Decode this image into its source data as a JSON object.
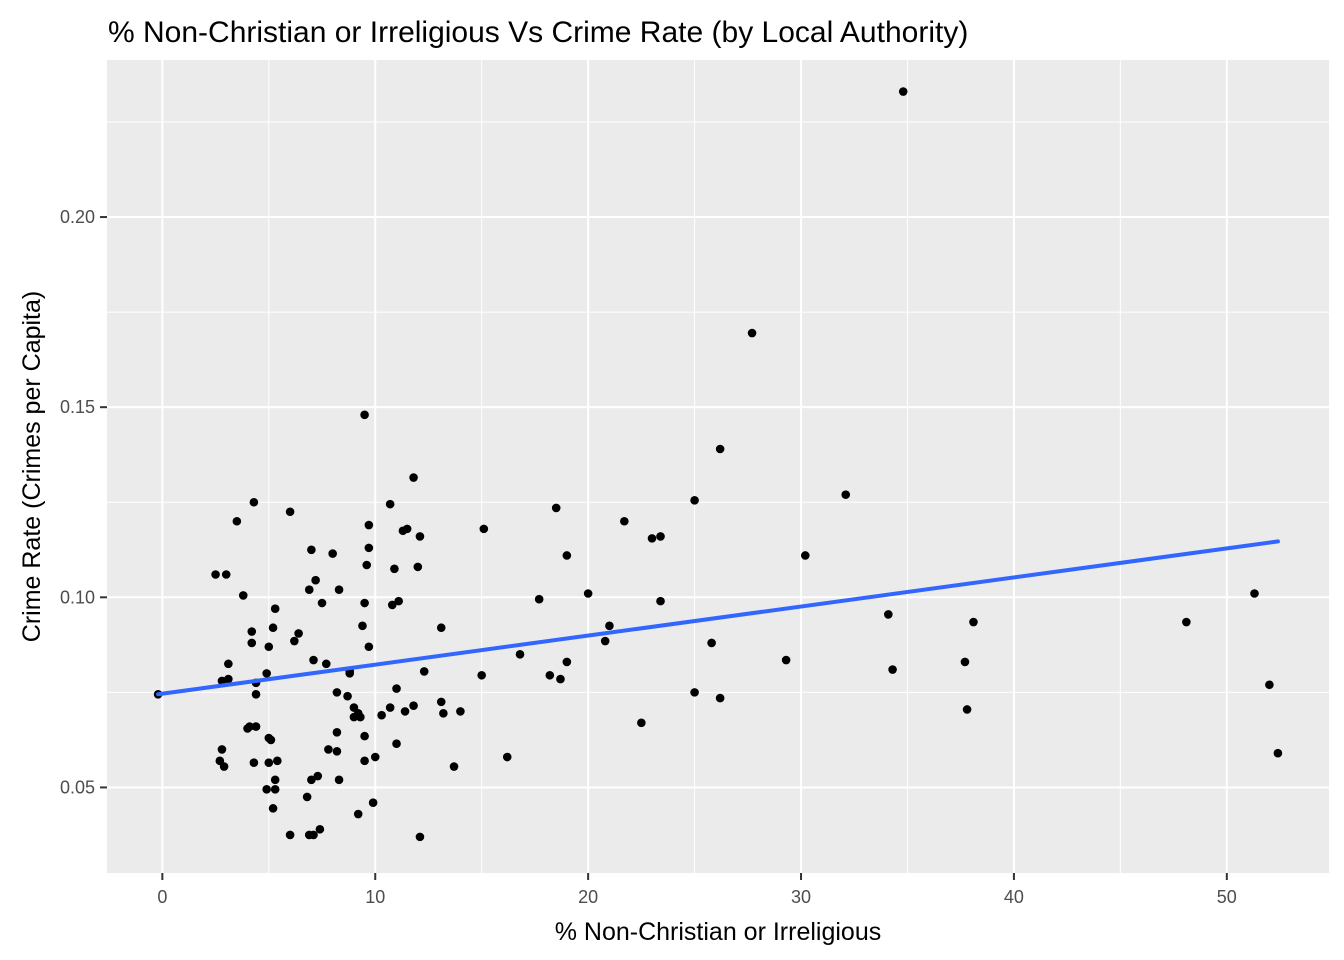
{
  "chart_data": {
    "type": "scatter",
    "title": "% Non-Christian or Irreligious Vs Crime Rate (by Local Authority)",
    "xlabel": "% Non-Christian or Irreligious",
    "ylabel": "Crime Rate (Crimes per Capita)",
    "xlim": [
      -2.6,
      54.8
    ],
    "ylim": [
      0.0275,
      0.2413
    ],
    "x_ticks": [
      0,
      10,
      20,
      30,
      40,
      50
    ],
    "x_tick_labels": [
      "0",
      "10",
      "20",
      "30",
      "40",
      "50"
    ],
    "y_ticks": [
      0.05,
      0.1,
      0.15,
      0.2
    ],
    "y_tick_labels": [
      "0.05",
      "0.10",
      "0.15",
      "0.20"
    ],
    "grid": true,
    "background_color": "#ebebeb",
    "point_color": "#000000",
    "trend_color": "#3366ff",
    "trend_line": {
      "method": "linear",
      "x": [
        -0.2,
        52.4
      ],
      "y": [
        0.0745,
        0.1147
      ]
    },
    "points": [
      [
        -0.2,
        0.0745
      ],
      [
        2.5,
        0.106
      ],
      [
        3.0,
        0.106
      ],
      [
        3.5,
        0.12
      ],
      [
        3.8,
        0.1005
      ],
      [
        4.3,
        0.125
      ],
      [
        2.8,
        0.06
      ],
      [
        2.7,
        0.057
      ],
      [
        2.9,
        0.0555
      ],
      [
        2.8,
        0.078
      ],
      [
        3.1,
        0.0785
      ],
      [
        3.1,
        0.0825
      ],
      [
        4.0,
        0.0655
      ],
      [
        4.1,
        0.066
      ],
      [
        4.2,
        0.088
      ],
      [
        4.2,
        0.091
      ],
      [
        4.4,
        0.0775
      ],
      [
        4.4,
        0.0745
      ],
      [
        4.4,
        0.066
      ],
      [
        4.3,
        0.0565
      ],
      [
        4.9,
        0.08
      ],
      [
        5.0,
        0.087
      ],
      [
        5.0,
        0.063
      ],
      [
        5.1,
        0.0625
      ],
      [
        5.0,
        0.0565
      ],
      [
        4.9,
        0.0495
      ],
      [
        5.3,
        0.0495
      ],
      [
        5.2,
        0.092
      ],
      [
        5.3,
        0.097
      ],
      [
        5.3,
        0.052
      ],
      [
        5.2,
        0.0445
      ],
      [
        5.4,
        0.057
      ],
      [
        6.0,
        0.1225
      ],
      [
        6.0,
        0.0375
      ],
      [
        6.2,
        0.0885
      ],
      [
        6.4,
        0.0905
      ],
      [
        6.9,
        0.102
      ],
      [
        7.0,
        0.1125
      ],
      [
        7.1,
        0.0835
      ],
      [
        7.2,
        0.1045
      ],
      [
        6.8,
        0.0475
      ],
      [
        6.9,
        0.0375
      ],
      [
        7.0,
        0.052
      ],
      [
        7.1,
        0.0375
      ],
      [
        7.3,
        0.053
      ],
      [
        7.4,
        0.039
      ],
      [
        7.5,
        0.0985
      ],
      [
        7.7,
        0.0825
      ],
      [
        7.8,
        0.06
      ],
      [
        8.0,
        0.1115
      ],
      [
        8.2,
        0.0595
      ],
      [
        8.2,
        0.0645
      ],
      [
        8.3,
        0.102
      ],
      [
        8.2,
        0.075
      ],
      [
        8.3,
        0.052
      ],
      [
        8.7,
        0.074
      ],
      [
        8.8,
        0.0805
      ],
      [
        8.8,
        0.08
      ],
      [
        9.0,
        0.071
      ],
      [
        9.2,
        0.0695
      ],
      [
        9.0,
        0.0685
      ],
      [
        9.3,
        0.0685
      ],
      [
        9.4,
        0.0925
      ],
      [
        9.5,
        0.0985
      ],
      [
        9.5,
        0.0635
      ],
      [
        9.5,
        0.057
      ],
      [
        9.2,
        0.043
      ],
      [
        9.6,
        0.1085
      ],
      [
        9.5,
        0.148
      ],
      [
        9.7,
        0.119
      ],
      [
        9.7,
        0.113
      ],
      [
        9.7,
        0.087
      ],
      [
        9.9,
        0.046
      ],
      [
        10.0,
        0.058
      ],
      [
        10.3,
        0.069
      ],
      [
        10.7,
        0.1245
      ],
      [
        10.7,
        0.071
      ],
      [
        10.8,
        0.098
      ],
      [
        10.9,
        0.1075
      ],
      [
        11.0,
        0.076
      ],
      [
        11.0,
        0.0615
      ],
      [
        11.1,
        0.099
      ],
      [
        11.3,
        0.1175
      ],
      [
        11.5,
        0.118
      ],
      [
        11.4,
        0.07
      ],
      [
        11.8,
        0.1315
      ],
      [
        11.8,
        0.0715
      ],
      [
        12.0,
        0.108
      ],
      [
        12.1,
        0.116
      ],
      [
        12.3,
        0.0805
      ],
      [
        12.1,
        0.037
      ],
      [
        13.1,
        0.092
      ],
      [
        13.1,
        0.0725
      ],
      [
        13.2,
        0.0695
      ],
      [
        13.7,
        0.0555
      ],
      [
        14.0,
        0.07
      ],
      [
        15.0,
        0.0795
      ],
      [
        15.1,
        0.118
      ],
      [
        16.2,
        0.058
      ],
      [
        16.8,
        0.085
      ],
      [
        17.7,
        0.0995
      ],
      [
        18.2,
        0.0795
      ],
      [
        18.5,
        0.1235
      ],
      [
        18.7,
        0.0785
      ],
      [
        19.0,
        0.083
      ],
      [
        19.0,
        0.111
      ],
      [
        20.0,
        0.101
      ],
      [
        20.8,
        0.0885
      ],
      [
        21.0,
        0.0925
      ],
      [
        21.7,
        0.12
      ],
      [
        22.5,
        0.067
      ],
      [
        23.0,
        0.1155
      ],
      [
        23.4,
        0.116
      ],
      [
        23.4,
        0.099
      ],
      [
        25.0,
        0.1255
      ],
      [
        25.0,
        0.075
      ],
      [
        25.8,
        0.088
      ],
      [
        26.2,
        0.139
      ],
      [
        26.2,
        0.0735
      ],
      [
        27.7,
        0.1695
      ],
      [
        29.3,
        0.0835
      ],
      [
        30.2,
        0.111
      ],
      [
        32.1,
        0.127
      ],
      [
        34.1,
        0.0955
      ],
      [
        34.3,
        0.081
      ],
      [
        34.8,
        0.233
      ],
      [
        37.7,
        0.083
      ],
      [
        37.8,
        0.0705
      ],
      [
        38.1,
        0.0935
      ],
      [
        48.1,
        0.0935
      ],
      [
        51.3,
        0.101
      ],
      [
        52.0,
        0.077
      ],
      [
        52.4,
        0.059
      ]
    ]
  }
}
